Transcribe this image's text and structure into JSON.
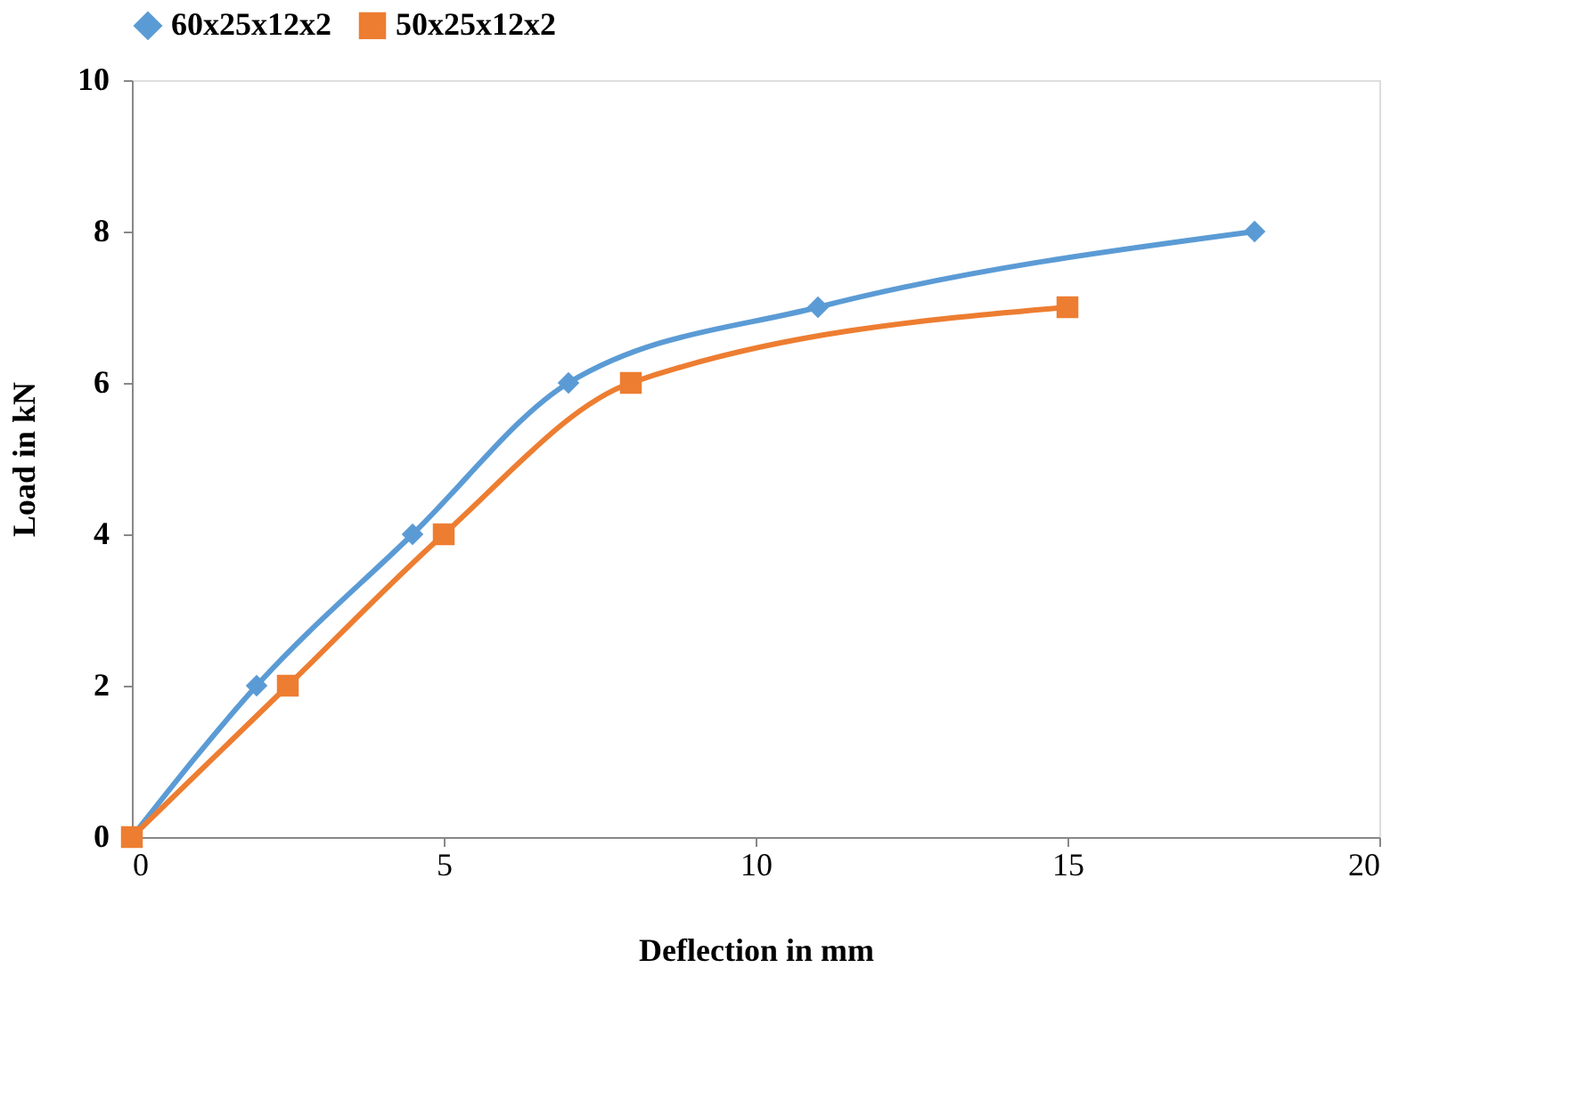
{
  "chart_data": {
    "type": "line",
    "xlabel": "Deflection in mm",
    "ylabel": "Load in kN",
    "xlim": [
      0,
      20
    ],
    "xticks": [
      0,
      5,
      10,
      15,
      20
    ],
    "ylim": [
      0,
      10
    ],
    "yticks": [
      0,
      2,
      4,
      6,
      8,
      10
    ],
    "grid": false,
    "legend": "top",
    "line_style": "solid",
    "series": [
      {
        "name": "60x25x12x2",
        "color": "#5b9bd5",
        "marker": "diamond",
        "x": [
          0,
          2,
          4.5,
          7,
          11,
          18
        ],
        "values": [
          0,
          2,
          4,
          6,
          7,
          8
        ]
      },
      {
        "name": "50x25x12x2",
        "color": "#ed7d31",
        "marker": "square",
        "x": [
          0,
          2.5,
          5,
          8,
          15
        ],
        "values": [
          0,
          2,
          4,
          6,
          7
        ]
      }
    ]
  }
}
